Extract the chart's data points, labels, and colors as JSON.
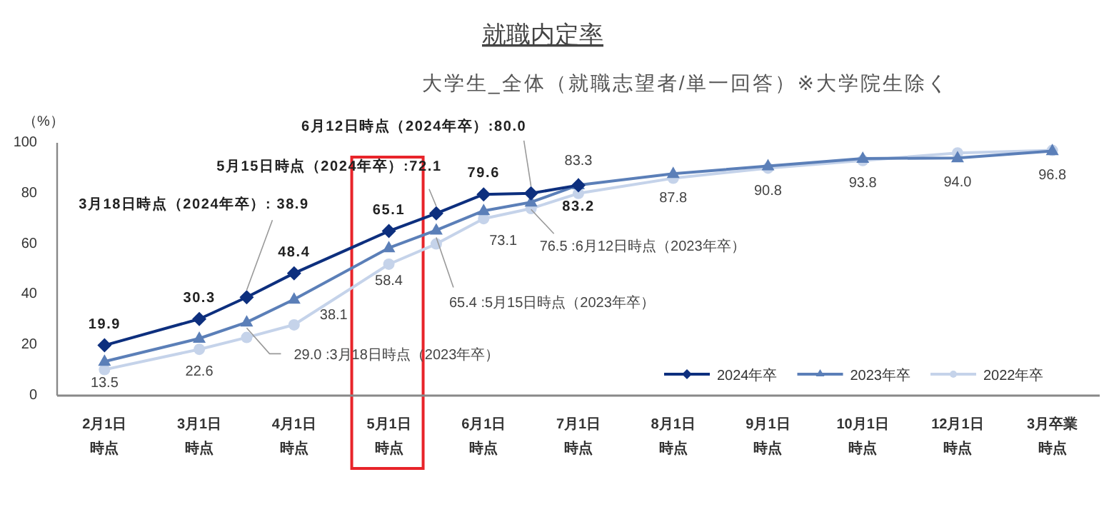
{
  "chart_data": {
    "type": "line",
    "title": "就職内定率",
    "subtitle": "大学生_全体（就職志望者/単一回答）※大学院生除く",
    "ylabel": "（%）",
    "categories": [
      "2月1日時点",
      null,
      "3月1日時点",
      null,
      "4月1日時点",
      null,
      "5月1日時点",
      null,
      "6月1日時点",
      null,
      "7月1日時点",
      null,
      "8月1日時点",
      null,
      "9月1日時点",
      null,
      "10月1日時点",
      null,
      "12月1日時点",
      null,
      "3月卒業時点"
    ],
    "ylim": [
      0,
      100
    ],
    "yticks": [
      0,
      20,
      40,
      60,
      80,
      100
    ],
    "grid": false,
    "legend": "bottom right",
    "series": [
      {
        "name": "2024年卒",
        "color": "#0d2f7e",
        "marker": "diamond",
        "values": [
          19.9,
          null,
          30.3,
          38.9,
          48.4,
          null,
          65.1,
          72.1,
          79.6,
          80.0,
          83.2,
          null,
          null,
          null,
          null,
          null,
          null,
          null,
          null,
          null,
          null
        ],
        "value_labels": [
          "19.9",
          null,
          "30.3",
          "3月18日時点（2024年卒）: 38.9",
          "48.4",
          null,
          "65.1",
          "5月15日時点（2024年卒）:72.1",
          "79.6",
          "6月12日時点（2024年卒）:80.0",
          "83.2",
          null,
          null,
          null,
          null,
          null,
          null,
          null,
          null,
          null,
          null
        ]
      },
      {
        "name": "2023年卒",
        "color": "#5b7fb8",
        "marker": "triangle",
        "values": [
          13.5,
          null,
          22.6,
          29.0,
          38.1,
          null,
          58.4,
          65.4,
          73.1,
          76.5,
          83.3,
          null,
          87.8,
          null,
          90.8,
          null,
          93.8,
          null,
          94.0,
          null,
          96.8
        ],
        "value_labels": [
          "13.5",
          null,
          "22.6",
          "29.0 :3月18日時点（2023年卒）",
          "38.1",
          null,
          "58.4",
          "65.4 :5月15日時点（2023年卒）",
          "73.1",
          "76.5 :6月12日時点（2023年卒）",
          "83.3",
          null,
          "87.8",
          null,
          "90.8",
          null,
          "93.8",
          null,
          "94.0",
          null,
          "96.8"
        ]
      },
      {
        "name": "2022年卒",
        "color": "#c5d3ea",
        "marker": "circle",
        "values": [
          10.3,
          null,
          18.3,
          23,
          28,
          null,
          52,
          60,
          70,
          74,
          80,
          null,
          86,
          null,
          90,
          null,
          93,
          null,
          96,
          null,
          97
        ]
      }
    ]
  }
}
